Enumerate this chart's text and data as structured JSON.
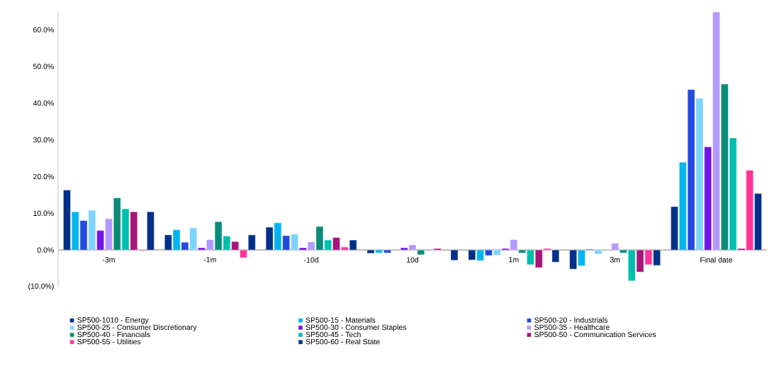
{
  "chart_data": {
    "type": "bar",
    "categories": [
      "-3m",
      "-1m",
      "-10d",
      "10d",
      "1m",
      "3m",
      "Final date"
    ],
    "series": [
      {
        "name": "SP500-1010 - Energy",
        "color": "#003087",
        "values": [
          16.3,
          4.1,
          6.2,
          -0.9,
          -2.7,
          -5.2,
          11.8
        ]
      },
      {
        "name": "SP500-15 - Materials",
        "color": "#00b5f0",
        "values": [
          10.4,
          5.5,
          7.4,
          -0.8,
          -2.9,
          -4.3,
          23.9
        ]
      },
      {
        "name": "SP500-20 - Industrials",
        "color": "#2249e0",
        "values": [
          8.0,
          2.1,
          3.9,
          -0.8,
          -1.5,
          0.2,
          43.7
        ]
      },
      {
        "name": "SP500-25 - Consumer Discretionary",
        "color": "#7dd3ff",
        "values": [
          10.8,
          6.0,
          4.3,
          null,
          -1.4,
          -1.1,
          41.3
        ]
      },
      {
        "name": "SP500-30 - Consumer Staples",
        "color": "#7314e6",
        "values": [
          5.3,
          0.6,
          0.6,
          0.6,
          0.4,
          null,
          28.1
        ]
      },
      {
        "name": "SP500-35 - Healthcare",
        "color": "#b399ff",
        "values": [
          8.5,
          2.8,
          2.2,
          1.4,
          2.8,
          1.8,
          64.8
        ]
      },
      {
        "name": "SP500-40 - Financials",
        "color": "#0a8c7b",
        "values": [
          14.2,
          7.7,
          6.4,
          -1.3,
          -0.8,
          -0.8,
          45.2
        ]
      },
      {
        "name": "SP500-45 - Tech",
        "color": "#00bfad",
        "values": [
          11.2,
          3.8,
          2.7,
          null,
          -4.0,
          -8.4,
          30.5
        ]
      },
      {
        "name": "SP500-50 - Communication Services",
        "color": "#a8137c",
        "values": [
          10.4,
          2.3,
          3.4,
          0.4,
          -4.8,
          -6.0,
          0.4
        ]
      },
      {
        "name": "SP500-55 - Utilities",
        "color": "#ff3399",
        "values": [
          -0.2,
          -2.1,
          0.8,
          null,
          0.4,
          -4.0,
          21.7
        ]
      },
      {
        "name": "SP500-60 - Real State",
        "color": "#003087",
        "values": [
          10.4,
          4.1,
          2.7,
          -2.8,
          -3.3,
          -4.2,
          15.4
        ]
      }
    ],
    "ylim": [
      -10,
      65
    ],
    "yticks": [
      {
        "value": -10,
        "label": "(10.0%)"
      },
      {
        "value": 0,
        "label": "0.0%"
      },
      {
        "value": 10,
        "label": "10.0%"
      },
      {
        "value": 20,
        "label": "20.0%"
      },
      {
        "value": 30,
        "label": "30.0%"
      },
      {
        "value": 40,
        "label": "40.0%"
      },
      {
        "value": 50,
        "label": "50.0%"
      },
      {
        "value": 60,
        "label": "60.0%"
      }
    ],
    "legend": "bottom",
    "grid": false
  }
}
